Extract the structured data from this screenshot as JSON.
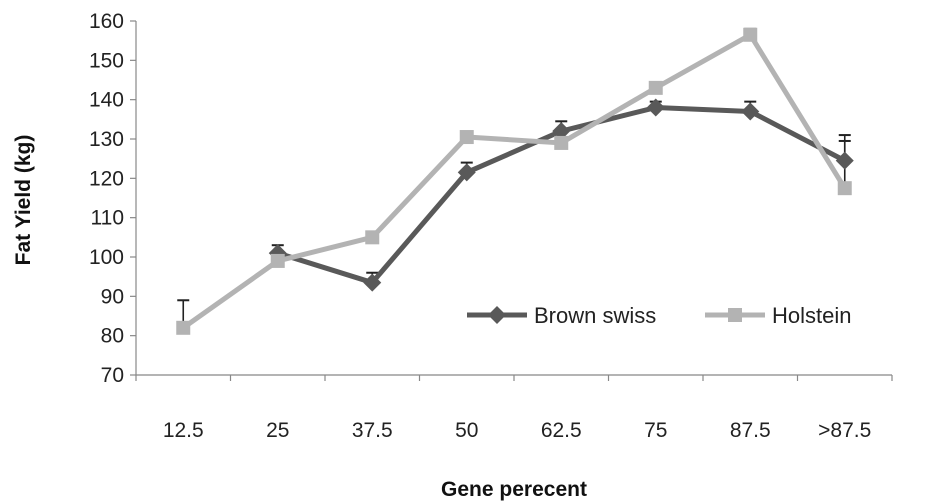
{
  "chart_data": {
    "type": "line",
    "title": "",
    "xlabel": "Gene perecent",
    "ylabel": "Fat Yield (kg)",
    "categories": [
      "12.5",
      "25",
      "37.5",
      "50",
      "62.5",
      "75",
      "87.5",
      ">87.5"
    ],
    "yticks": [
      "70",
      "80",
      "90",
      "100",
      "110",
      "120",
      "130",
      "140",
      "150",
      "160"
    ],
    "ylim": [
      70,
      160
    ],
    "grid": false,
    "legend_position": "lower-right",
    "series": [
      {
        "name": "Brown swiss",
        "marker": "diamond",
        "color": "#595959",
        "values": [
          null,
          101,
          93.5,
          121.5,
          132,
          138,
          137,
          124.5
        ],
        "error": [
          null,
          2,
          2.5,
          2.5,
          2.5,
          1.5,
          2.5,
          6.5
        ]
      },
      {
        "name": "Holstein",
        "marker": "square",
        "color": "#b3b3b3",
        "values": [
          82,
          99,
          105,
          130.5,
          129,
          143,
          156.5,
          117.5
        ],
        "error": [
          7,
          null,
          null,
          null,
          null,
          null,
          1.5,
          12
        ]
      }
    ]
  }
}
